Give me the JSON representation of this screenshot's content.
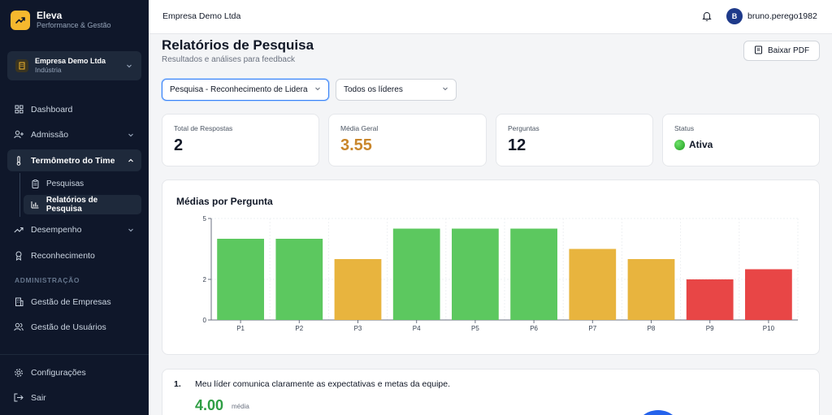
{
  "app": {
    "name": "Eleva",
    "tagline": "Performance & Gestão"
  },
  "company_switcher": {
    "name": "Empresa Demo Ltda",
    "industry": "Indústria"
  },
  "nav": {
    "dashboard": "Dashboard",
    "admissao": "Admissão",
    "termometro": "Termômetro do Time",
    "pesquisas": "Pesquisas",
    "relatorios": "Relatórios de Pesquisa",
    "desempenho": "Desempenho",
    "reconhecimento": "Reconhecimento",
    "section_admin": "ADMINISTRAÇÃO",
    "gestao_empresas": "Gestão de Empresas",
    "gestao_usuarios": "Gestão de Usuários",
    "configuracoes": "Configurações",
    "sair": "Sair"
  },
  "topbar": {
    "company": "Empresa Demo Ltda",
    "user_initial": "B",
    "user_name": "bruno.perego1982"
  },
  "header": {
    "title": "Relatórios de Pesquisa",
    "subtitle": "Resultados e análises para feedback",
    "pdf_button": "Baixar PDF"
  },
  "filters": {
    "survey": "Pesquisa - Reconhecimento de Lidera",
    "leaders": "Todos os líderes"
  },
  "stats": {
    "total_label": "Total de Respostas",
    "total_value": "2",
    "avg_label": "Média Geral",
    "avg_value": "3.55",
    "questions_label": "Perguntas",
    "questions_value": "12",
    "status_label": "Status",
    "status_value": "Ativa"
  },
  "colors": {
    "green": "#5cc85f",
    "yellow": "#e8b43e",
    "red": "#e84646",
    "orange_text": "#c9862b"
  },
  "chart_data": {
    "type": "bar",
    "title": "Médias por Pergunta",
    "categories": [
      "P1",
      "P2",
      "P3",
      "P4",
      "P5",
      "P6",
      "P7",
      "P8",
      "P9",
      "P10"
    ],
    "values": [
      4.0,
      4.0,
      3.0,
      4.5,
      4.5,
      4.5,
      3.5,
      3.0,
      2.0,
      2.5
    ],
    "bar_colors": [
      "#5cc85f",
      "#5cc85f",
      "#e8b43e",
      "#5cc85f",
      "#5cc85f",
      "#5cc85f",
      "#e8b43e",
      "#e8b43e",
      "#e84646",
      "#e84646"
    ],
    "yticks": [
      "0",
      "2",
      "5"
    ],
    "ylim": [
      0,
      5
    ],
    "grid": true
  },
  "question_card": {
    "number": "1.",
    "text": "Meu líder comunica claramente as expectativas e metas da equipe.",
    "avg": "4.00",
    "avg_label": "média"
  }
}
